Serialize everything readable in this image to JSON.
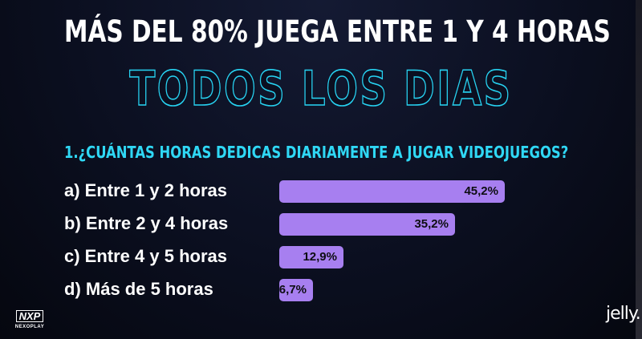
{
  "header": {
    "title": "MÁS DEL 80% JUEGA ENTRE 1 Y 4 HORAS",
    "subtitle": "TODOS LOS DIAS"
  },
  "chart_data": {
    "type": "bar",
    "orientation": "horizontal",
    "title": "1.¿CUÁNTAS HORAS DEDICAS DIARIAMENTE A JUGAR VIDEOJUEGOS?",
    "categories": [
      "a) Entre 1 y 2 horas",
      "b) Entre 2 y 4 horas",
      "c) Entre 4 y 5 horas",
      "d) Más de 5 horas"
    ],
    "values": [
      45.2,
      35.2,
      12.9,
      6.7
    ],
    "value_labels": [
      "45,2%",
      "35,2%",
      "12,9%",
      "6,7%"
    ],
    "unit": "%",
    "bar_color": "#a77ff0",
    "grid": false,
    "legend": "none"
  },
  "branding": {
    "left_logo_mark": "NXP",
    "left_logo_text": "NEXOPLAY",
    "right_logo": "jelly."
  },
  "colors": {
    "title": "#ffffff",
    "accent": "#27d3f2",
    "bar": "#a77ff0",
    "background": "#0b0f20"
  }
}
